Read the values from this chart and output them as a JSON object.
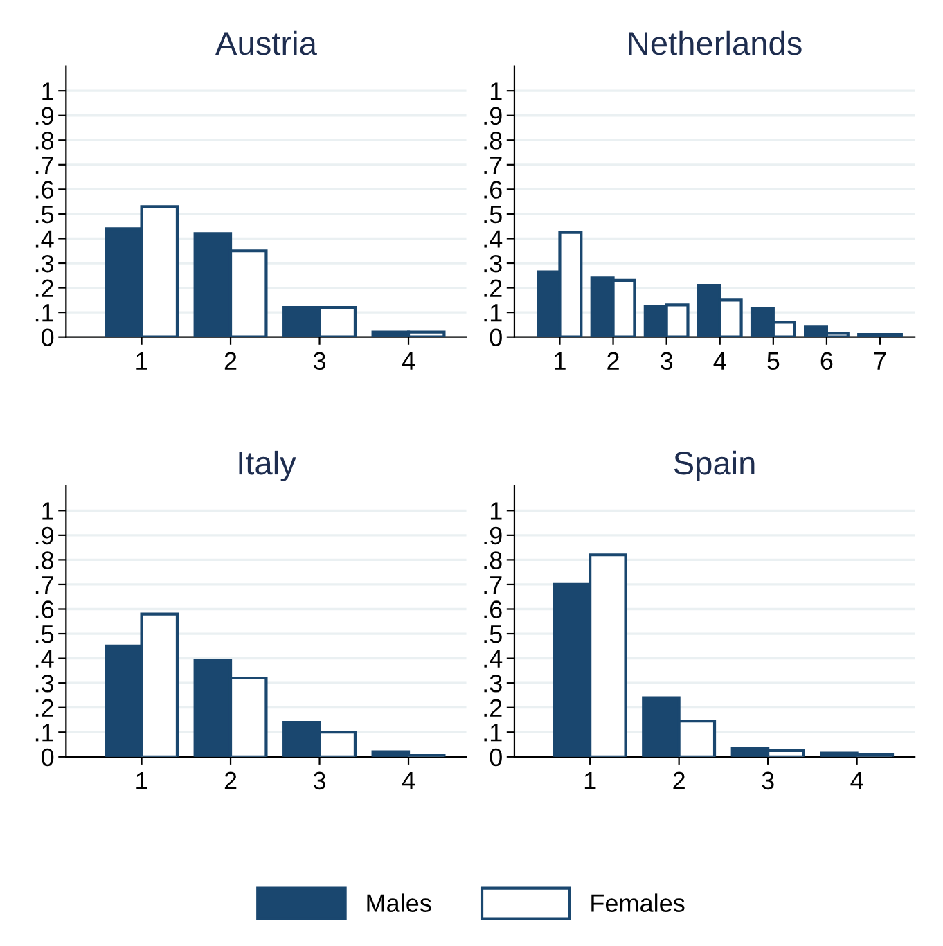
{
  "chart_data": [
    {
      "type": "bar",
      "title": "Austria",
      "legend": "bottom",
      "categories": [
        "1",
        "2",
        "3",
        "4"
      ],
      "series": [
        {
          "name": "Males",
          "color": "#1a476f",
          "values": [
            0.44,
            0.42,
            0.12,
            0.02
          ]
        },
        {
          "name": "Females",
          "color": "#ffffff",
          "values": [
            0.53,
            0.35,
            0.12,
            0.02
          ]
        }
      ],
      "ylim": [
        0,
        1.1
      ],
      "yticks": [
        {
          "value": 0,
          "label": "0"
        },
        {
          "value": 0.1,
          "label": ".1"
        },
        {
          "value": 0.2,
          "label": ".2"
        },
        {
          "value": 0.3,
          "label": ".3"
        },
        {
          "value": 0.4,
          "label": ".4"
        },
        {
          "value": 0.5,
          "label": ".5"
        },
        {
          "value": 0.6,
          "label": ".6"
        },
        {
          "value": 0.7,
          "label": ".7"
        },
        {
          "value": 0.8,
          "label": ".8"
        },
        {
          "value": 0.9,
          "label": ".9"
        },
        {
          "value": 1,
          "label": "1"
        }
      ],
      "grid": "y"
    },
    {
      "type": "bar",
      "title": "Netherlands",
      "categories": [
        "1",
        "2",
        "3",
        "4",
        "5",
        "6",
        "7"
      ],
      "series": [
        {
          "color": "#1a476f",
          "values": [
            0.265,
            0.24,
            0.125,
            0.21,
            0.115,
            0.04,
            0.01
          ]
        },
        {
          "color": "#ffffff",
          "values": [
            0.425,
            0.23,
            0.13,
            0.15,
            0.06,
            0.015,
            0.01
          ]
        }
      ],
      "ylim": [
        0,
        1.1
      ],
      "yticks": [
        {
          "value": 0,
          "label": "0"
        },
        {
          "value": 0.1,
          "label": ".1"
        },
        {
          "value": 0.2,
          "label": ".2"
        },
        {
          "value": 0.3,
          "label": ".3"
        },
        {
          "value": 0.4,
          "label": ".4"
        },
        {
          "value": 0.5,
          "label": ".5"
        },
        {
          "value": 0.6,
          "label": ".6"
        },
        {
          "value": 0.7,
          "label": ".7"
        },
        {
          "value": 0.8,
          "label": ".8"
        },
        {
          "value": 0.9,
          "label": ".9"
        },
        {
          "value": 1,
          "label": "1"
        }
      ],
      "grid": "y"
    },
    {
      "type": "bar",
      "title": "Italy",
      "categories": [
        "1",
        "2",
        "3",
        "4"
      ],
      "series": [
        {
          "color": "#1a476f",
          "values": [
            0.45,
            0.39,
            0.14,
            0.02
          ]
        },
        {
          "color": "#ffffff",
          "values": [
            0.58,
            0.32,
            0.1,
            0.005
          ]
        }
      ],
      "ylim": [
        0,
        1.1
      ],
      "yticks": [
        {
          "value": 0,
          "label": "0"
        },
        {
          "value": 0.1,
          "label": ".1"
        },
        {
          "value": 0.2,
          "label": ".2"
        },
        {
          "value": 0.3,
          "label": ".3"
        },
        {
          "value": 0.4,
          "label": ".4"
        },
        {
          "value": 0.5,
          "label": ".5"
        },
        {
          "value": 0.6,
          "label": ".6"
        },
        {
          "value": 0.7,
          "label": ".7"
        },
        {
          "value": 0.8,
          "label": ".8"
        },
        {
          "value": 0.9,
          "label": ".9"
        },
        {
          "value": 1,
          "label": "1"
        }
      ],
      "grid": "y"
    },
    {
      "type": "bar",
      "title": "Spain",
      "categories": [
        "1",
        "2",
        "3",
        "4"
      ],
      "series": [
        {
          "color": "#1a476f",
          "values": [
            0.7,
            0.24,
            0.035,
            0.015
          ]
        },
        {
          "color": "#ffffff",
          "values": [
            0.82,
            0.145,
            0.025,
            0.01
          ]
        }
      ],
      "ylim": [
        0,
        1.1
      ],
      "yticks": [
        {
          "value": 0,
          "label": "0"
        },
        {
          "value": 0.1,
          "label": ".1"
        },
        {
          "value": 0.2,
          "label": ".2"
        },
        {
          "value": 0.3,
          "label": ".3"
        },
        {
          "value": 0.4,
          "label": ".4"
        },
        {
          "value": 0.5,
          "label": ".5"
        },
        {
          "value": 0.6,
          "label": ".6"
        },
        {
          "value": 0.7,
          "label": ".7"
        },
        {
          "value": 0.8,
          "label": ".8"
        },
        {
          "value": 0.9,
          "label": ".9"
        },
        {
          "value": 1,
          "label": "1"
        }
      ],
      "grid": "y"
    }
  ]
}
